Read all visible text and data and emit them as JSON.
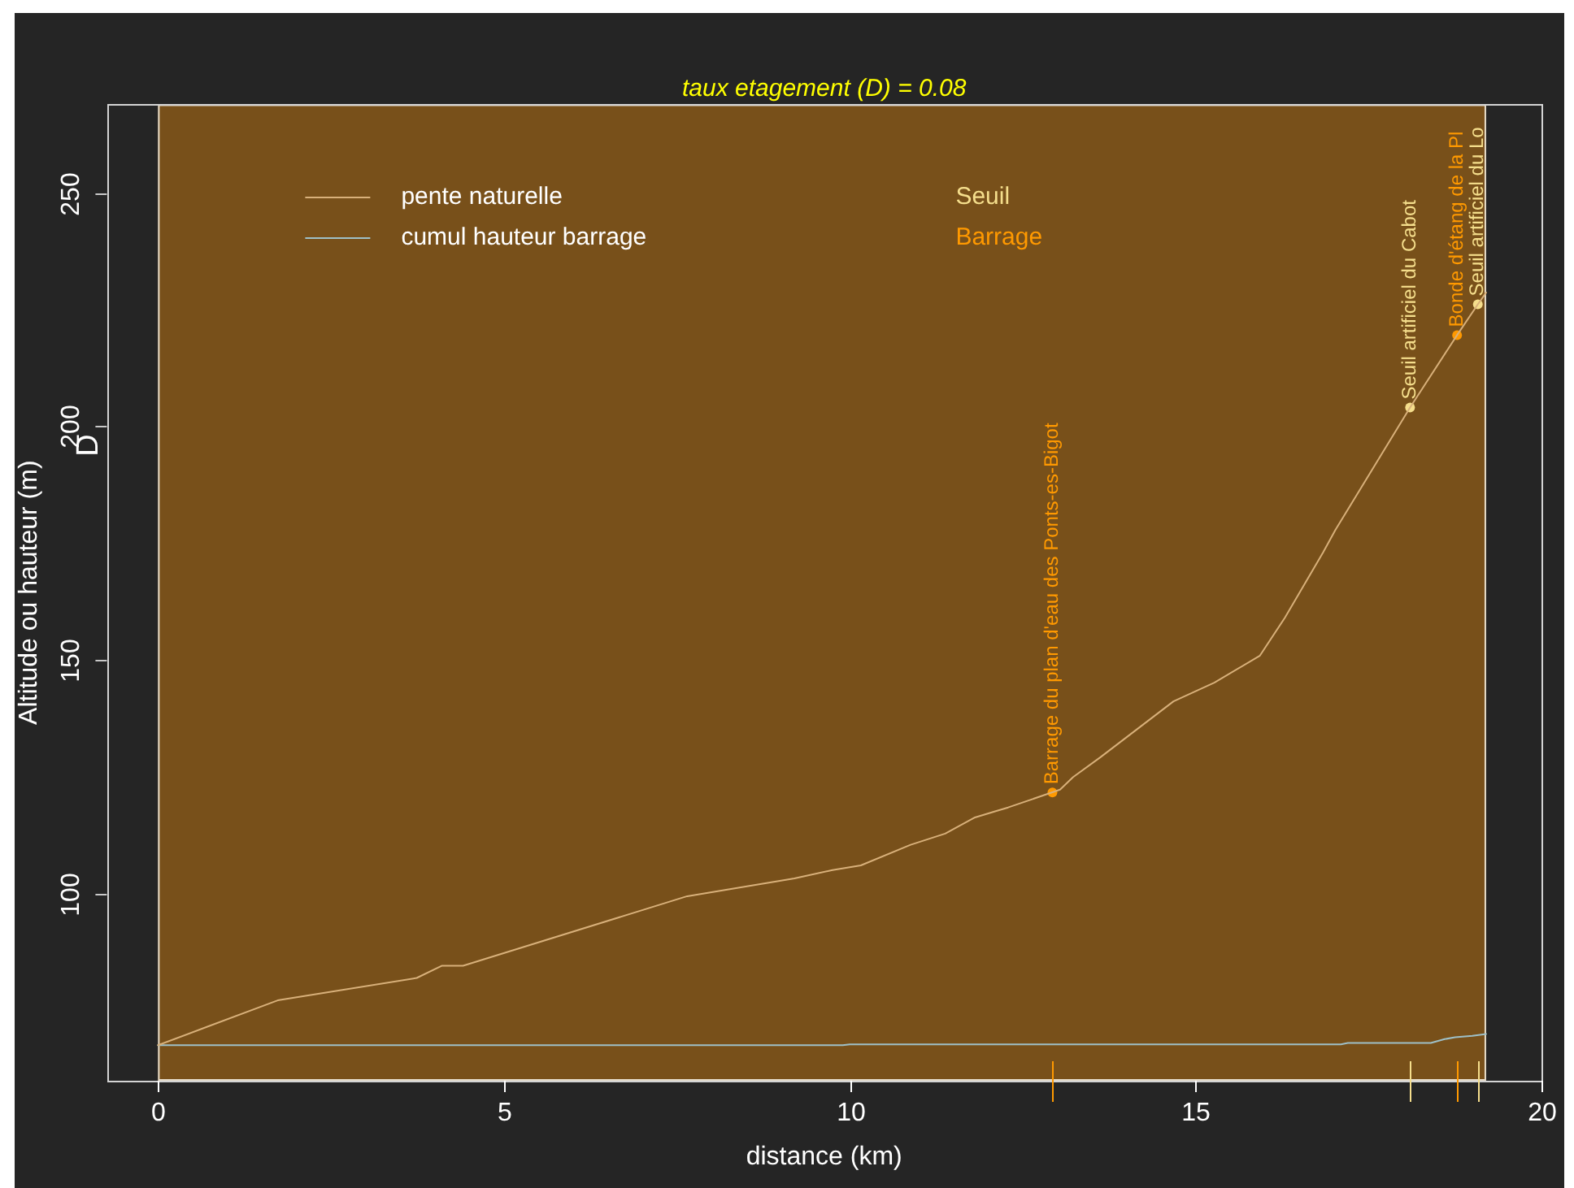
{
  "chart_data": {
    "type": "line",
    "title": "taux etagement (D) = 0.08",
    "xlabel": "distance (km)",
    "ylabel": "Altitude ou hauteur (m)",
    "series": [
      {
        "name": "pente naturelle",
        "color": "#d8b07a",
        "x": [
          0,
          1.73,
          3.74,
          4.1,
          4.41,
          7.65,
          9.2,
          9.75,
          10.16,
          10.88,
          11.38,
          11.8,
          12.13,
          12.29,
          13.04,
          13.23,
          13.62,
          14.68,
          15.27,
          15.93,
          16.29,
          16.84,
          17.02,
          18.1,
          18.78,
          19.08,
          19.2
        ],
        "values": [
          67.5,
          77.1,
          81.9,
          84.5,
          84.5,
          99.4,
          103.2,
          105.0,
          106.0,
          110.4,
          112.8,
          116.2,
          117.7,
          118.4,
          122.2,
          124.9,
          129.1,
          141.1,
          145.1,
          150.9,
          159.0,
          172.9,
          177.8,
          204.0,
          219.5,
          226.1,
          228.6
        ]
      },
      {
        "name": "cumul hauteur barrage",
        "color": "#9ec0c8",
        "x": [
          0,
          9.9,
          10.0,
          17.1,
          17.2,
          18.4,
          18.6,
          18.75,
          19.0,
          19.2
        ],
        "values": [
          67.5,
          67.5,
          67.7,
          67.7,
          68.0,
          68.0,
          68.8,
          69.2,
          69.5,
          69.9
        ]
      },
      {
        "name": "Seuil",
        "type": "scatter",
        "marker": "circle",
        "color": "#f5de8c",
        "x": [
          18.1,
          19.08
        ],
        "values": [
          204.0,
          226.1
        ]
      },
      {
        "name": "Barrage",
        "type": "scatter",
        "marker": "circle",
        "color": "#ff9900",
        "x": [
          12.93,
          18.78
        ],
        "values": [
          121.6,
          219.5
        ]
      }
    ],
    "xlim": [
      -0.74,
      20
    ],
    "xticks": [
      0,
      5,
      10,
      15,
      20
    ],
    "ylim": [
      59.9,
      268.9
    ],
    "yticks": [
      100,
      150,
      200,
      250
    ],
    "bands": [
      {
        "axis": "x",
        "from": 0,
        "to": 19.2,
        "color": "#78501a"
      }
    ],
    "annotations": [
      {
        "text": "Barrage du plan d'eau des Ponts-es-Bigot",
        "x": 12.93,
        "y": 121.6
      },
      {
        "text": "Seuil artificiel du Cabot",
        "x": 18.1,
        "y": 204.0
      },
      {
        "text": "Bonde d'étang de la Pl",
        "x": 18.78,
        "y": 219.5
      },
      {
        "text": "Seuil artificiel du Lo",
        "x": 19.08,
        "y": 226.1
      },
      "D"
    ],
    "legend": "top left",
    "marker": "none"
  }
}
